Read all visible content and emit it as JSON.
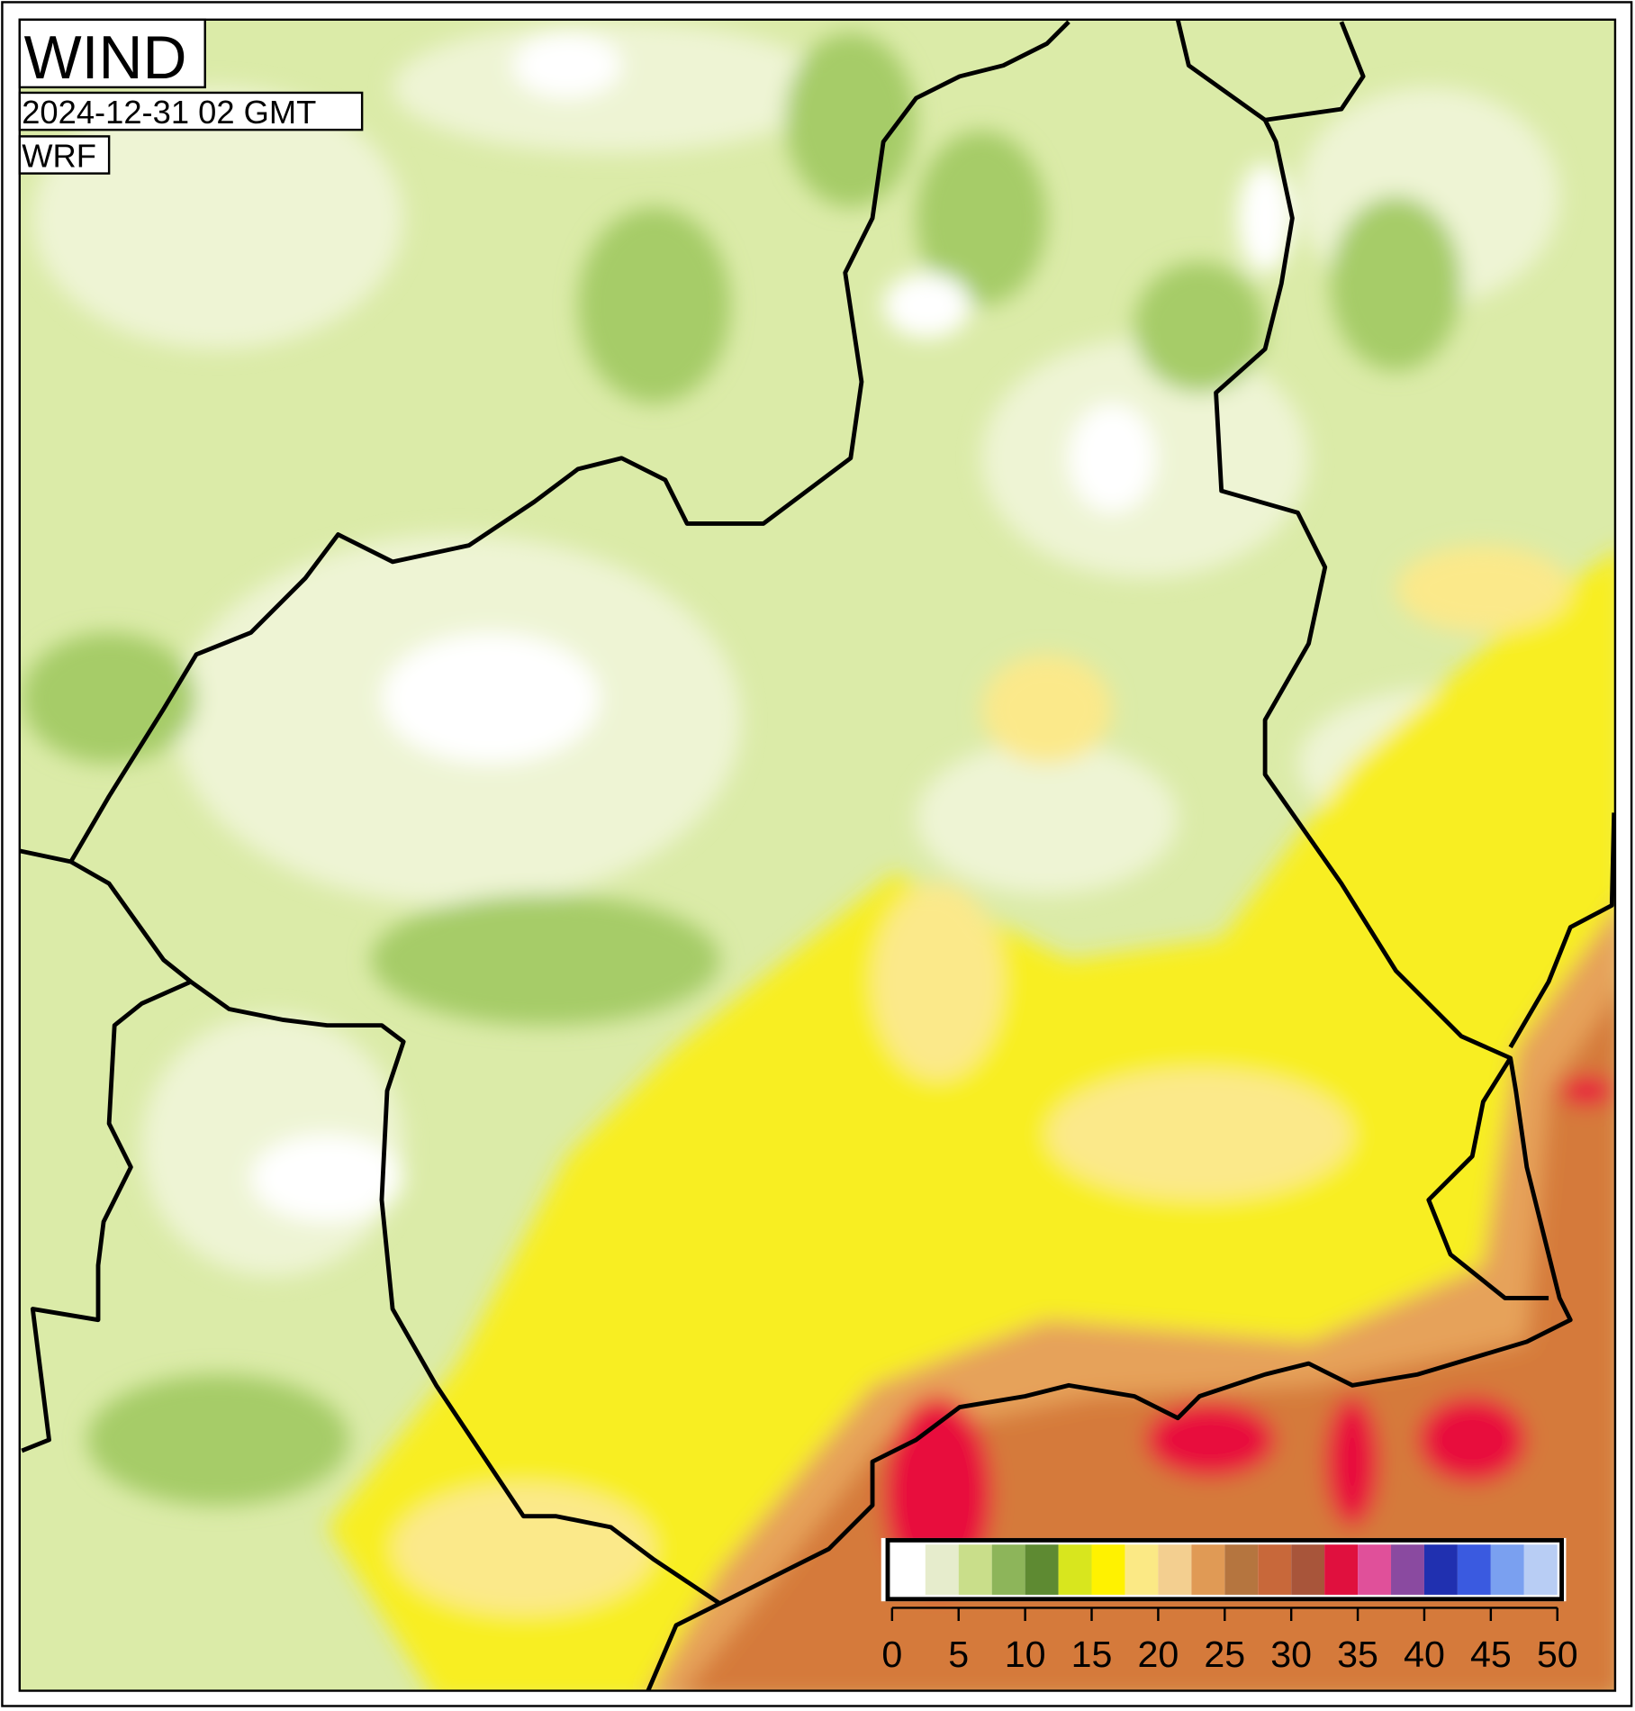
{
  "title": "WIND",
  "valid_time": "2024-12-31 02 GMT",
  "model": "WRF",
  "colorbar": {
    "bins": [
      0,
      2.5,
      5,
      7.5,
      10,
      12.5,
      15,
      17.5,
      20,
      22.5,
      25,
      27.5,
      30,
      32.5,
      35,
      37.5,
      40,
      42.5,
      45,
      47.5,
      50
    ],
    "colors": [
      "#ffffff",
      "#e6eccc",
      "#c9de8a",
      "#8db55a",
      "#5e8a32",
      "#d8e61e",
      "#fff200",
      "#fbe985",
      "#f3cf90",
      "#e09a55",
      "#b5753f",
      "#c8683a",
      "#a8553a",
      "#e0103e",
      "#e0509a",
      "#8a4aa0",
      "#2030b0",
      "#3a5ae0",
      "#7aa0f0",
      "#b8cdf4"
    ],
    "ticks": [
      0,
      5,
      10,
      15,
      20,
      25,
      30,
      35,
      40,
      45,
      50
    ]
  }
}
